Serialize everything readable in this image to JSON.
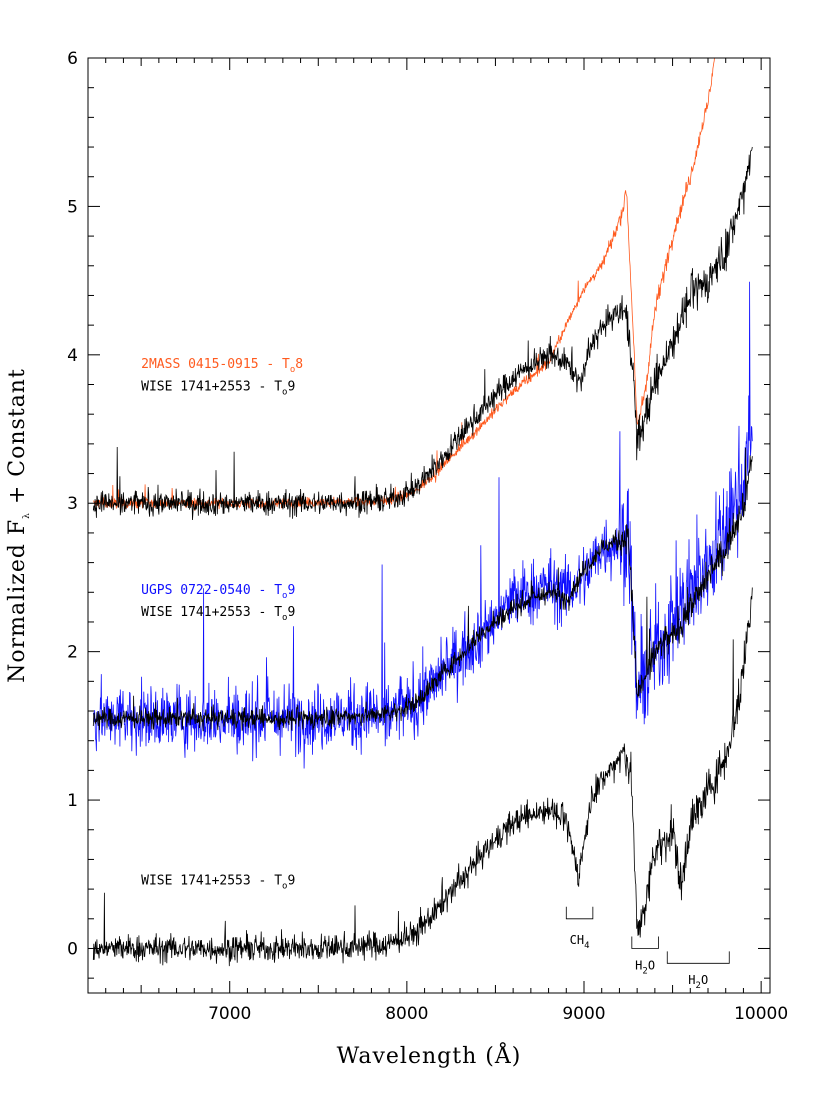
{
  "chart_data": {
    "type": "line",
    "xlabel": "Wavelength (Å)",
    "ylabel": "Normalized F_λ + Constant",
    "ylabel_parts": {
      "main": "Normalized F",
      "sub": "λ",
      "rest": " + Constant"
    },
    "xlim": [
      6200,
      10050
    ],
    "ylim": [
      -0.3,
      6.0
    ],
    "xticks": [
      7000,
      8000,
      9000,
      10000
    ],
    "yticks": [
      0,
      1,
      2,
      3,
      4,
      5,
      6
    ],
    "grid": false,
    "colors": {
      "wise": "#000000",
      "2mass": "#ff5a1e",
      "ugps": "#1010ff"
    },
    "series": [
      {
        "name": "WISE 1741+2553 - T9 (offset 3)",
        "color": "#000000",
        "noise": 0.12,
        "x": [
          6230,
          7000,
          7500,
          7900,
          8050,
          8200,
          8400,
          8600,
          8800,
          8900,
          8980,
          9050,
          9150,
          9230,
          9270,
          9300,
          9350,
          9400,
          9500,
          9600,
          9700,
          9800,
          9880,
          9950
        ],
        "y": [
          3.0,
          3.0,
          3.0,
          3.02,
          3.1,
          3.3,
          3.6,
          3.85,
          4.0,
          3.95,
          3.8,
          4.1,
          4.25,
          4.3,
          4.0,
          3.4,
          3.6,
          3.8,
          4.1,
          4.4,
          4.5,
          4.7,
          5.0,
          5.4
        ]
      },
      {
        "name": "2MASS 0415-0915 - T8",
        "color": "#ff5a1e",
        "noise": 0.05,
        "x": [
          6230,
          7000,
          7500,
          7900,
          8050,
          8200,
          8400,
          8600,
          8800,
          8900,
          9000,
          9100,
          9200,
          9240,
          9280,
          9300,
          9350,
          9400,
          9500,
          9600,
          9700,
          9750,
          9800
        ],
        "y": [
          3.0,
          3.0,
          3.0,
          3.02,
          3.08,
          3.25,
          3.5,
          3.75,
          3.95,
          4.2,
          4.45,
          4.6,
          4.9,
          5.1,
          4.1,
          3.5,
          3.8,
          4.3,
          4.8,
          5.2,
          5.7,
          6.1,
          6.5
        ]
      },
      {
        "name": "UGPS 0722-0540 - T9",
        "color": "#1010ff",
        "noise": 0.32,
        "x": [
          6230,
          7000,
          7500,
          7900,
          8050,
          8200,
          8400,
          8600,
          8800,
          8900,
          9000,
          9100,
          9200,
          9250,
          9300,
          9400,
          9500,
          9600,
          9700,
          9800,
          9900,
          9950
        ],
        "y": [
          1.55,
          1.55,
          1.55,
          1.58,
          1.65,
          1.85,
          2.1,
          2.35,
          2.45,
          2.4,
          2.5,
          2.7,
          2.75,
          2.8,
          1.7,
          2.0,
          2.2,
          2.4,
          2.6,
          2.8,
          3.2,
          3.5
        ]
      },
      {
        "name": "WISE 1741+2553 - T9 (offset 1.55)",
        "color": "#000000",
        "noise": 0.1,
        "x": [
          6230,
          7000,
          7500,
          7900,
          8050,
          8200,
          8400,
          8600,
          8800,
          8900,
          9000,
          9100,
          9200,
          9250,
          9300,
          9400,
          9500,
          9600,
          9700,
          9800,
          9900,
          9950
        ],
        "y": [
          1.55,
          1.55,
          1.55,
          1.58,
          1.65,
          1.85,
          2.1,
          2.3,
          2.4,
          2.35,
          2.55,
          2.7,
          2.75,
          2.8,
          1.7,
          2.0,
          2.1,
          2.3,
          2.5,
          2.7,
          3.0,
          3.3
        ]
      },
      {
        "name": "WISE 1741+2553 - T9 (offset 0)",
        "color": "#000000",
        "noise": 0.13,
        "x": [
          6230,
          7000,
          7500,
          7900,
          8050,
          8200,
          8400,
          8600,
          8800,
          8900,
          8970,
          9050,
          9150,
          9230,
          9270,
          9300,
          9350,
          9400,
          9500,
          9550,
          9600,
          9700,
          9800,
          9880,
          9950
        ],
        "y": [
          0.0,
          0.0,
          0.0,
          0.03,
          0.1,
          0.3,
          0.6,
          0.85,
          0.95,
          0.85,
          0.5,
          1.05,
          1.2,
          1.35,
          1.1,
          0.1,
          0.3,
          0.65,
          0.8,
          0.4,
          0.85,
          1.05,
          1.3,
          1.7,
          2.4
        ]
      }
    ],
    "annotations": [
      {
        "text": "2MASS 0415-0915 - T",
        "sub": "o",
        "suffix": "8",
        "color": "#ff5a1e",
        "x": 6500,
        "y": 3.91
      },
      {
        "text": "WISE 1741+2553 - T",
        "sub": "o",
        "suffix": "9",
        "color": "#000000",
        "x": 6500,
        "y": 3.76
      },
      {
        "text": "UGPS 0722-0540 - T",
        "sub": "o",
        "suffix": "9",
        "color": "#1010ff",
        "x": 6500,
        "y": 2.39
      },
      {
        "text": "WISE 1741+2553 - T",
        "sub": "o",
        "suffix": "9",
        "color": "#000000",
        "x": 6500,
        "y": 2.24
      },
      {
        "text": "WISE 1741+2553 - T",
        "sub": "o",
        "suffix": "9",
        "color": "#000000",
        "x": 6500,
        "y": 0.43
      }
    ],
    "bands": [
      {
        "label": "CH",
        "sub": "4",
        "x1": 8900,
        "x2": 9050,
        "y_bracket": 0.2,
        "y_label": 0.03
      },
      {
        "label": "H",
        "sub": "2",
        "suffix": "O",
        "x1": 9270,
        "x2": 9420,
        "y_bracket": -0.0,
        "y_label": -0.14
      },
      {
        "label": "H",
        "sub": "2",
        "suffix": "O",
        "x1": 9470,
        "x2": 9820,
        "y_bracket": -0.1,
        "y_label": -0.24
      }
    ]
  }
}
